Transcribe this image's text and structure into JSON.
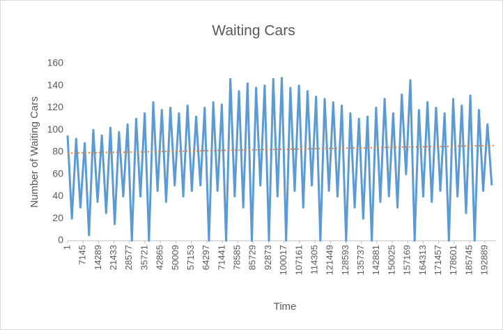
{
  "chart_data": {
    "type": "line",
    "title": "Waiting Cars",
    "x_label": "Time",
    "y_label": "Number of Waiting Cars",
    "x": [
      1,
      1981,
      3961,
      5941,
      7921,
      9901,
      11881,
      13861,
      15841,
      17821,
      19801,
      21781,
      23761,
      25741,
      27721,
      29701,
      31681,
      33661,
      35641,
      37621,
      39601,
      41581,
      43561,
      45541,
      47521,
      49501,
      51481,
      53461,
      55441,
      57421,
      59401,
      61381,
      63361,
      65341,
      67321,
      69301,
      71281,
      73261,
      75241,
      77221,
      79201,
      81181,
      83161,
      85141,
      87121,
      89101,
      91081,
      93061,
      95041,
      97021,
      99001,
      100981,
      102961,
      104941,
      106921,
      108901,
      110881,
      112861,
      114841,
      116821,
      118801,
      120781,
      122761,
      124741,
      126721,
      128701,
      130681,
      132661,
      134641,
      136621,
      138601,
      140581,
      142561,
      144541,
      146521,
      148501,
      150481,
      152461,
      154441,
      156421,
      158401,
      160381,
      162361,
      164341,
      166321,
      168301,
      170281,
      172261,
      174241,
      176221,
      178201,
      180181,
      182161,
      184141,
      186121,
      188101,
      190081,
      192061,
      194041,
      196021
    ],
    "values": [
      95,
      20,
      92,
      30,
      88,
      5,
      100,
      35,
      95,
      25,
      102,
      15,
      98,
      40,
      105,
      0,
      110,
      40,
      115,
      0,
      125,
      45,
      118,
      35,
      120,
      50,
      115,
      40,
      122,
      45,
      112,
      50,
      120,
      0,
      125,
      45,
      123,
      0,
      146,
      40,
      135,
      30,
      142,
      0,
      138,
      50,
      140,
      0,
      146,
      40,
      147,
      0,
      138,
      45,
      140,
      30,
      135,
      50,
      130,
      0,
      128,
      45,
      125,
      40,
      122,
      0,
      115,
      30,
      110,
      20,
      112,
      0,
      120,
      35,
      128,
      40,
      115,
      30,
      132,
      60,
      145,
      0,
      118,
      40,
      125,
      35,
      120,
      45,
      115,
      0,
      128,
      40,
      122,
      25,
      131,
      0,
      118,
      45,
      105,
      50
    ],
    "color": "#5b9bd5",
    "trendline": {
      "x": [
        1,
        198000
      ],
      "values": [
        79,
        86
      ],
      "color": "#ed7d31"
    },
    "xlim": [
      1,
      198000
    ],
    "xticks": [
      1,
      7145,
      14289,
      21433,
      28577,
      35721,
      42865,
      50009,
      57153,
      64297,
      71441,
      78585,
      85729,
      92873,
      100017,
      107161,
      114305,
      121449,
      128593,
      135737,
      142881,
      150025,
      157169,
      164313,
      171457,
      178601,
      185745,
      192889
    ],
    "ylim": [
      0,
      160
    ],
    "yticks": [
      0,
      20,
      40,
      60,
      80,
      100,
      120,
      140,
      160
    ],
    "grid": false
  }
}
